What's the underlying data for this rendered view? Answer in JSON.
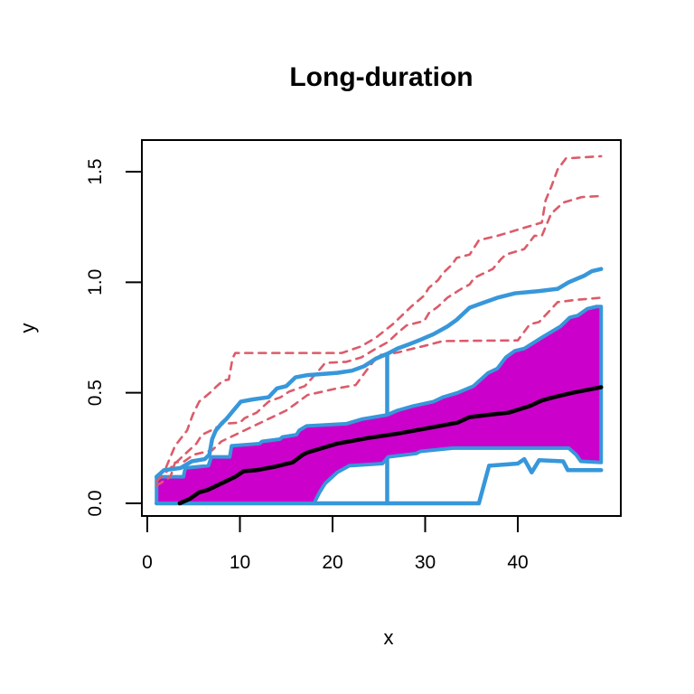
{
  "title": "Long-duration",
  "axes": {
    "x": {
      "label": "x",
      "tick_labels": [
        "0",
        "10",
        "20",
        "30",
        "40"
      ]
    },
    "y": {
      "label": "y",
      "tick_labels": [
        "0.0",
        "0.5",
        "1.0",
        "1.5"
      ]
    }
  },
  "colors": {
    "band_fill": "#CB00CB",
    "envelope_blue": "#3797DA",
    "dashed_red": "#DC5B6A",
    "median_black": "#000000",
    "frame": "#000000"
  },
  "chart_data": {
    "type": "line",
    "title": "Long-duration",
    "xlabel": "x",
    "ylabel": "y",
    "xlim": [
      0,
      49
    ],
    "ylim": [
      -0.06,
      1.64
    ],
    "grid": false,
    "legend": "none",
    "x_ticks": [
      0,
      10,
      20,
      30,
      40
    ],
    "y_ticks": [
      0.0,
      0.5,
      1.0,
      1.5
    ],
    "band": {
      "name": "pointwise-quantile-band",
      "fill": "#CB00CB",
      "stroke": "#3797DA",
      "stroke_width": 4,
      "upper": [
        [
          1,
          0.12
        ],
        [
          3.9,
          0.12
        ],
        [
          4.1,
          0.16
        ],
        [
          6.6,
          0.17
        ],
        [
          6.9,
          0.21
        ],
        [
          8.9,
          0.21
        ],
        [
          9.1,
          0.26
        ],
        [
          12.1,
          0.27
        ],
        [
          12.4,
          0.28
        ],
        [
          14.3,
          0.29
        ],
        [
          14.6,
          0.3
        ],
        [
          16.1,
          0.31
        ],
        [
          16.4,
          0.33
        ],
        [
          17.2,
          0.35
        ],
        [
          21.5,
          0.36
        ],
        [
          23.1,
          0.38
        ],
        [
          25.9,
          0.4
        ],
        [
          27,
          0.42
        ],
        [
          28.7,
          0.44
        ],
        [
          30.9,
          0.46
        ],
        [
          31.9,
          0.48
        ],
        [
          33.5,
          0.5
        ],
        [
          35.2,
          0.53
        ],
        [
          36.8,
          0.59
        ],
        [
          37.8,
          0.61
        ],
        [
          38.7,
          0.66
        ],
        [
          39.7,
          0.69
        ],
        [
          40.7,
          0.7
        ],
        [
          42.6,
          0.75
        ],
        [
          44.6,
          0.8
        ],
        [
          45.6,
          0.84
        ],
        [
          46.5,
          0.85
        ],
        [
          47.5,
          0.88
        ],
        [
          48.5,
          0.89
        ],
        [
          49,
          0.89
        ]
      ],
      "lower": [
        [
          1,
          0
        ],
        [
          18,
          0
        ],
        [
          18.6,
          0.05
        ],
        [
          19.2,
          0.09
        ],
        [
          20.5,
          0.14
        ],
        [
          21.8,
          0.17
        ],
        [
          25.4,
          0.18
        ],
        [
          26,
          0.21
        ],
        [
          29,
          0.225
        ],
        [
          29.5,
          0.235
        ],
        [
          33,
          0.25
        ],
        [
          45.5,
          0.25
        ],
        [
          46.3,
          0.22
        ],
        [
          46.8,
          0.19
        ],
        [
          49,
          0.185
        ]
      ]
    },
    "series_under_band": [
      {
        "name": "jump-line",
        "color": "#3797DA",
        "style": "solid",
        "width": 4.5,
        "points": [
          [
            25.9,
            0
          ],
          [
            25.9,
            0.676
          ]
        ]
      },
      {
        "name": "lower-envelope-line",
        "color": "#3797DA",
        "style": "solid",
        "width": 4.5,
        "points": [
          [
            1,
            0
          ],
          [
            35.8,
            0
          ],
          [
            36.9,
            0.17
          ],
          [
            40,
            0.18
          ],
          [
            40.7,
            0.2
          ],
          [
            41.5,
            0.14
          ],
          [
            42.3,
            0.195
          ],
          [
            44.9,
            0.19
          ],
          [
            45.4,
            0.15
          ],
          [
            49,
            0.15
          ]
        ]
      }
    ],
    "series_over_band": [
      {
        "name": "median-line",
        "color": "#000000",
        "style": "solid",
        "width": 4.5,
        "points": [
          [
            3.5,
            0
          ],
          [
            4.6,
            0.02
          ],
          [
            5.6,
            0.05
          ],
          [
            6.5,
            0.06
          ],
          [
            7.5,
            0.08
          ],
          [
            8.5,
            0.1
          ],
          [
            9.5,
            0.12
          ],
          [
            10.4,
            0.145
          ],
          [
            11.8,
            0.15
          ],
          [
            13.7,
            0.165
          ],
          [
            15.7,
            0.185
          ],
          [
            16.8,
            0.22
          ],
          [
            17.3,
            0.23
          ],
          [
            20.5,
            0.27
          ],
          [
            23.8,
            0.295
          ],
          [
            27,
            0.315
          ],
          [
            30.3,
            0.34
          ],
          [
            33.5,
            0.365
          ],
          [
            34.8,
            0.39
          ],
          [
            36.8,
            0.4
          ],
          [
            39,
            0.41
          ],
          [
            41.3,
            0.44
          ],
          [
            42.6,
            0.465
          ],
          [
            43.9,
            0.48
          ],
          [
            45.9,
            0.5
          ],
          [
            49,
            0.525
          ]
        ]
      },
      {
        "name": "dashed-path-a",
        "color": "#DC5B6A",
        "style": "dashed",
        "width": 2.6,
        "points": [
          [
            1,
            0.12
          ],
          [
            2,
            0.16
          ],
          [
            3,
            0.26
          ],
          [
            4.3,
            0.33
          ],
          [
            4.9,
            0.4
          ],
          [
            5.6,
            0.46
          ],
          [
            6.2,
            0.48
          ],
          [
            6.9,
            0.505
          ],
          [
            7.5,
            0.53
          ],
          [
            8.2,
            0.555
          ],
          [
            8.8,
            0.56
          ],
          [
            9.2,
            0.655
          ],
          [
            9.5,
            0.68
          ],
          [
            21,
            0.68
          ],
          [
            23.1,
            0.71
          ],
          [
            24.7,
            0.75
          ],
          [
            26.5,
            0.81
          ],
          [
            27.5,
            0.85
          ],
          [
            28.5,
            0.89
          ],
          [
            29.9,
            0.94
          ],
          [
            30.4,
            0.975
          ],
          [
            31.4,
            1.01
          ],
          [
            31.9,
            1.04
          ],
          [
            32.9,
            1.08
          ],
          [
            33.4,
            1.11
          ],
          [
            34.8,
            1.125
          ],
          [
            35.8,
            1.19
          ],
          [
            37.8,
            1.21
          ],
          [
            40.2,
            1.24
          ],
          [
            42.6,
            1.27
          ],
          [
            43,
            1.37
          ],
          [
            43.6,
            1.43
          ],
          [
            44.3,
            1.51
          ],
          [
            45.2,
            1.56
          ],
          [
            49,
            1.57
          ]
        ]
      },
      {
        "name": "dashed-path-b",
        "color": "#DC5B6A",
        "style": "dashed",
        "width": 2.6,
        "points": [
          [
            1,
            0.1
          ],
          [
            3,
            0.18
          ],
          [
            4,
            0.22
          ],
          [
            5.3,
            0.27
          ],
          [
            5.9,
            0.31
          ],
          [
            6.9,
            0.33
          ],
          [
            8.2,
            0.36
          ],
          [
            10,
            0.365
          ],
          [
            10.5,
            0.385
          ],
          [
            11.8,
            0.41
          ],
          [
            13.1,
            0.46
          ],
          [
            14.4,
            0.48
          ],
          [
            15.3,
            0.505
          ],
          [
            16.3,
            0.52
          ],
          [
            17,
            0.53
          ],
          [
            18.5,
            0.6
          ],
          [
            19.2,
            0.635
          ],
          [
            21.5,
            0.64
          ],
          [
            23.1,
            0.66
          ],
          [
            24.7,
            0.7
          ],
          [
            26,
            0.73
          ],
          [
            27,
            0.77
          ],
          [
            28,
            0.805
          ],
          [
            29.9,
            0.825
          ],
          [
            30.4,
            0.86
          ],
          [
            31.4,
            0.89
          ],
          [
            32.4,
            0.93
          ],
          [
            33.9,
            0.97
          ],
          [
            34.8,
            0.99
          ],
          [
            35.3,
            1.02
          ],
          [
            36.3,
            1.04
          ],
          [
            37.3,
            1.06
          ],
          [
            38.2,
            1.105
          ],
          [
            38.7,
            1.125
          ],
          [
            40.7,
            1.15
          ],
          [
            41.8,
            1.21
          ],
          [
            42.6,
            1.21
          ],
          [
            43.6,
            1.31
          ],
          [
            44.9,
            1.36
          ],
          [
            46.9,
            1.385
          ],
          [
            49,
            1.39
          ]
        ]
      },
      {
        "name": "dashed-path-c",
        "color": "#DC5B6A",
        "style": "dashed",
        "width": 2.6,
        "points": [
          [
            1,
            0.08
          ],
          [
            2.5,
            0.12
          ],
          [
            3,
            0.185
          ],
          [
            4,
            0.19
          ],
          [
            5,
            0.22
          ],
          [
            7,
            0.24
          ],
          [
            8,
            0.28
          ],
          [
            9,
            0.3
          ],
          [
            10.5,
            0.33
          ],
          [
            12,
            0.36
          ],
          [
            13,
            0.38
          ],
          [
            14,
            0.4
          ],
          [
            15,
            0.42
          ],
          [
            16,
            0.45
          ],
          [
            17.3,
            0.49
          ],
          [
            20.5,
            0.52
          ],
          [
            22.5,
            0.535
          ],
          [
            24,
            0.62
          ],
          [
            25,
            0.67
          ],
          [
            27,
            0.682
          ],
          [
            28.3,
            0.696
          ],
          [
            30.3,
            0.716
          ],
          [
            31.9,
            0.734
          ],
          [
            40,
            0.737
          ],
          [
            41.3,
            0.81
          ],
          [
            42.3,
            0.82
          ],
          [
            44.3,
            0.91
          ],
          [
            46.2,
            0.92
          ],
          [
            49,
            0.93
          ]
        ]
      },
      {
        "name": "upper-envelope-line",
        "color": "#3797DA",
        "style": "solid",
        "width": 4.5,
        "points": [
          [
            1,
            0.12
          ],
          [
            1.8,
            0.15
          ],
          [
            3.6,
            0.16
          ],
          [
            4.8,
            0.19
          ],
          [
            6.2,
            0.2
          ],
          [
            6.7,
            0.22
          ],
          [
            7,
            0.29
          ],
          [
            7.4,
            0.33
          ],
          [
            8,
            0.36
          ],
          [
            8.5,
            0.38
          ],
          [
            9.3,
            0.42
          ],
          [
            10.1,
            0.46
          ],
          [
            11.4,
            0.47
          ],
          [
            13.1,
            0.48
          ],
          [
            14,
            0.52
          ],
          [
            15,
            0.53
          ],
          [
            16,
            0.57
          ],
          [
            17.3,
            0.58
          ],
          [
            20.5,
            0.59
          ],
          [
            22.1,
            0.6
          ],
          [
            23.4,
            0.62
          ],
          [
            24.7,
            0.655
          ],
          [
            25.9,
            0.676
          ],
          [
            27,
            0.7
          ],
          [
            28.3,
            0.72
          ],
          [
            29.5,
            0.74
          ],
          [
            30.9,
            0.765
          ],
          [
            32.4,
            0.8
          ],
          [
            33.4,
            0.83
          ],
          [
            34.8,
            0.885
          ],
          [
            35.8,
            0.9
          ],
          [
            37.8,
            0.93
          ],
          [
            39.7,
            0.95
          ],
          [
            42.3,
            0.96
          ],
          [
            44.3,
            0.97
          ],
          [
            45.5,
            1.0
          ],
          [
            47.2,
            1.03
          ],
          [
            48,
            1.05
          ],
          [
            49,
            1.06
          ]
        ]
      }
    ]
  }
}
